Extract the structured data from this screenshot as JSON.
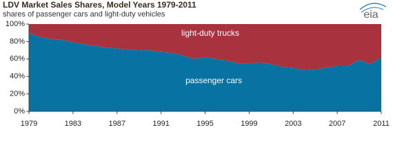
{
  "chart_data": {
    "type": "stacked-area",
    "title": "LDV Market Sales Shares, Model Years 1979-2011",
    "subtitle": "shares of passenger cars and light-duty vehicles",
    "logo": "eia",
    "x": [
      1979,
      1980,
      1981,
      1982,
      1983,
      1984,
      1985,
      1986,
      1987,
      1988,
      1989,
      1990,
      1991,
      1992,
      1993,
      1994,
      1995,
      1996,
      1997,
      1998,
      1999,
      2000,
      2001,
      2002,
      2003,
      2004,
      2005,
      2006,
      2007,
      2008,
      2009,
      2010,
      2011
    ],
    "series": [
      {
        "name": "passenger cars",
        "color": "#0872a2",
        "values": [
          90,
          85,
          83,
          82,
          79,
          77,
          75,
          73,
          72,
          71,
          70,
          70,
          68,
          67,
          64,
          60,
          62,
          60,
          58,
          55,
          55,
          56,
          54,
          51,
          50,
          47,
          48,
          50,
          52,
          52,
          59,
          54,
          62
        ]
      },
      {
        "name": "light-duty trucks",
        "color": "#a8333f",
        "values": [
          10,
          15,
          17,
          18,
          21,
          23,
          25,
          27,
          28,
          29,
          30,
          30,
          32,
          33,
          36,
          40,
          38,
          40,
          42,
          45,
          45,
          44,
          46,
          49,
          50,
          53,
          52,
          50,
          48,
          48,
          41,
          46,
          38
        ]
      }
    ],
    "xlim": [
      1979,
      2011
    ],
    "xticks": [
      1979,
      1983,
      1987,
      1991,
      1995,
      1999,
      2003,
      2007,
      2011
    ],
    "ylim": [
      0,
      100
    ],
    "yticks": [
      {
        "value": 0,
        "label": "0%"
      },
      {
        "value": 20,
        "label": "20%"
      },
      {
        "value": 40,
        "label": "40%"
      },
      {
        "value": 60,
        "label": "60%"
      },
      {
        "value": 80,
        "label": "80%"
      },
      {
        "value": 100,
        "label": "100%"
      }
    ]
  }
}
